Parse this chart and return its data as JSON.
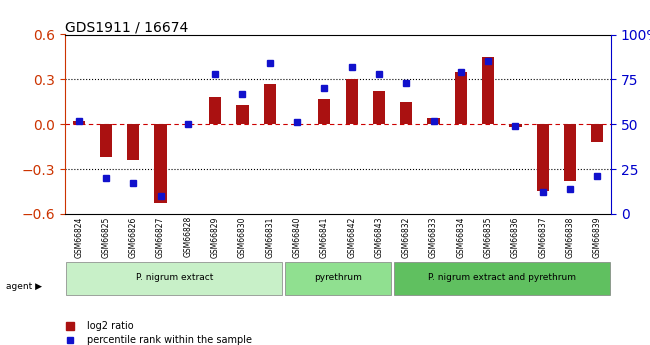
{
  "title": "GDS1911 / 16674",
  "samples": [
    "GSM66824",
    "GSM66825",
    "GSM66826",
    "GSM66827",
    "GSM66828",
    "GSM66829",
    "GSM66830",
    "GSM66831",
    "GSM66840",
    "GSM66841",
    "GSM66842",
    "GSM66843",
    "GSM66832",
    "GSM66833",
    "GSM66834",
    "GSM66835",
    "GSM66836",
    "GSM66837",
    "GSM66838",
    "GSM66839"
  ],
  "log2_ratio": [
    0.02,
    -0.22,
    -0.24,
    -0.53,
    0.0,
    0.18,
    0.13,
    0.27,
    0.0,
    0.17,
    0.3,
    0.22,
    0.15,
    0.04,
    0.35,
    0.45,
    -0.02,
    -0.45,
    -0.38,
    -0.12
  ],
  "pct_rank": [
    52,
    20,
    17,
    10,
    50,
    78,
    67,
    84,
    51,
    70,
    82,
    78,
    73,
    52,
    79,
    85,
    49,
    12,
    14,
    21
  ],
  "groups": [
    {
      "label": "P. nigrum extract",
      "start": 0,
      "end": 7,
      "color": "#c8f0c8"
    },
    {
      "label": "pyrethrum",
      "start": 8,
      "end": 11,
      "color": "#90e090"
    },
    {
      "label": "P. nigrum extract and pyrethrum",
      "start": 12,
      "end": 19,
      "color": "#60c060"
    }
  ],
  "ylim_left": [
    -0.6,
    0.6
  ],
  "ylim_right": [
    0,
    100
  ],
  "bar_color": "#aa1111",
  "dot_color": "#1111cc",
  "zero_line_color": "#cc0000",
  "grid_color": "#000000",
  "yticks_left": [
    -0.6,
    -0.3,
    0.0,
    0.3,
    0.6
  ],
  "yticks_right": [
    0,
    25,
    50,
    75,
    100
  ],
  "agent_label": "agent",
  "legend_log2": "log2 ratio",
  "legend_pct": "percentile rank within the sample"
}
